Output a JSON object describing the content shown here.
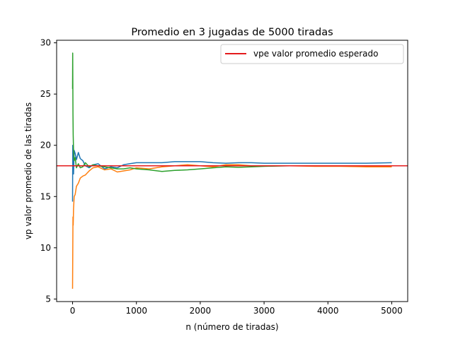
{
  "chart_data": {
    "type": "line",
    "title": "Promedio en 3 jugadas de 5000 tiradas",
    "xlabel": "n (número de tiradas)",
    "ylabel": "vp valor promedio de las tiradas",
    "xlim": [
      -250,
      5250
    ],
    "ylim": [
      4.75,
      30.25
    ],
    "xticks": [
      0,
      1000,
      2000,
      3000,
      4000,
      5000
    ],
    "yticks": [
      5,
      10,
      15,
      20,
      25,
      30
    ],
    "grid": false,
    "legend": {
      "placement": "top-right",
      "entries": [
        "vpe valor promedio esperado"
      ]
    },
    "reference_line": {
      "label": "vpe valor promedio esperado",
      "y": 18,
      "color": "#e41a1c"
    },
    "series": [
      {
        "color": "#1f77b4",
        "points": [
          [
            0,
            14.5
          ],
          [
            3,
            20
          ],
          [
            8,
            18.8
          ],
          [
            15,
            17.2
          ],
          [
            25,
            19.5
          ],
          [
            40,
            19.2
          ],
          [
            60,
            18.6
          ],
          [
            90,
            19.3
          ],
          [
            120,
            18.7
          ],
          [
            160,
            18.5
          ],
          [
            200,
            18
          ],
          [
            260,
            17.8
          ],
          [
            320,
            18.1
          ],
          [
            400,
            18.2
          ],
          [
            500,
            17.7
          ],
          [
            600,
            17.9
          ],
          [
            700,
            17.8
          ],
          [
            800,
            18.1
          ],
          [
            900,
            18.2
          ],
          [
            1000,
            18.3
          ],
          [
            1200,
            18.3
          ],
          [
            1400,
            18.3
          ],
          [
            1600,
            18.4
          ],
          [
            1800,
            18.4
          ],
          [
            2000,
            18.4
          ],
          [
            2200,
            18.3
          ],
          [
            2400,
            18.25
          ],
          [
            2600,
            18.3
          ],
          [
            2800,
            18.3
          ],
          [
            3000,
            18.25
          ],
          [
            3400,
            18.25
          ],
          [
            3800,
            18.25
          ],
          [
            4200,
            18.25
          ],
          [
            4600,
            18.25
          ],
          [
            5000,
            18.3
          ]
        ]
      },
      {
        "color": "#ff7f0e",
        "points": [
          [
            0,
            6
          ],
          [
            3,
            9.5
          ],
          [
            6,
            13
          ],
          [
            10,
            12.2
          ],
          [
            15,
            13.8
          ],
          [
            25,
            15
          ],
          [
            40,
            15.2
          ],
          [
            60,
            16
          ],
          [
            90,
            16.3
          ],
          [
            120,
            16.8
          ],
          [
            160,
            17
          ],
          [
            200,
            17.1
          ],
          [
            260,
            17.5
          ],
          [
            320,
            17.8
          ],
          [
            400,
            17.9
          ],
          [
            500,
            17.6
          ],
          [
            600,
            17.7
          ],
          [
            700,
            17.4
          ],
          [
            800,
            17.5
          ],
          [
            900,
            17.6
          ],
          [
            1000,
            17.8
          ],
          [
            1200,
            17.7
          ],
          [
            1400,
            17.9
          ],
          [
            1600,
            18
          ],
          [
            1800,
            18.1
          ],
          [
            2000,
            18
          ],
          [
            2200,
            17.9
          ],
          [
            2400,
            18.1
          ],
          [
            2600,
            18.1
          ],
          [
            2800,
            18
          ],
          [
            3000,
            18
          ],
          [
            3400,
            18
          ],
          [
            3800,
            17.95
          ],
          [
            4200,
            17.95
          ],
          [
            4600,
            17.9
          ],
          [
            5000,
            17.9
          ]
        ]
      },
      {
        "color": "#2ca02c",
        "points": [
          [
            0,
            25.5
          ],
          [
            2,
            29
          ],
          [
            4,
            26
          ],
          [
            6,
            23
          ],
          [
            10,
            21
          ],
          [
            15,
            19.5
          ],
          [
            25,
            18.5
          ],
          [
            40,
            18.8
          ],
          [
            60,
            17.8
          ],
          [
            90,
            18.2
          ],
          [
            120,
            17.8
          ],
          [
            160,
            17.9
          ],
          [
            200,
            18.3
          ],
          [
            260,
            17.9
          ],
          [
            320,
            18.1
          ],
          [
            400,
            18
          ],
          [
            500,
            17.9
          ],
          [
            600,
            17.8
          ],
          [
            700,
            17.7
          ],
          [
            800,
            17.7
          ],
          [
            900,
            17.8
          ],
          [
            1000,
            17.7
          ],
          [
            1200,
            17.6
          ],
          [
            1400,
            17.45
          ],
          [
            1600,
            17.55
          ],
          [
            1800,
            17.6
          ],
          [
            2000,
            17.7
          ],
          [
            2200,
            17.8
          ],
          [
            2400,
            17.9
          ],
          [
            2600,
            17.85
          ],
          [
            2800,
            17.9
          ],
          [
            3000,
            17.95
          ],
          [
            3400,
            18
          ],
          [
            3800,
            18
          ],
          [
            4200,
            18
          ],
          [
            4600,
            18
          ],
          [
            5000,
            18
          ]
        ]
      }
    ]
  }
}
